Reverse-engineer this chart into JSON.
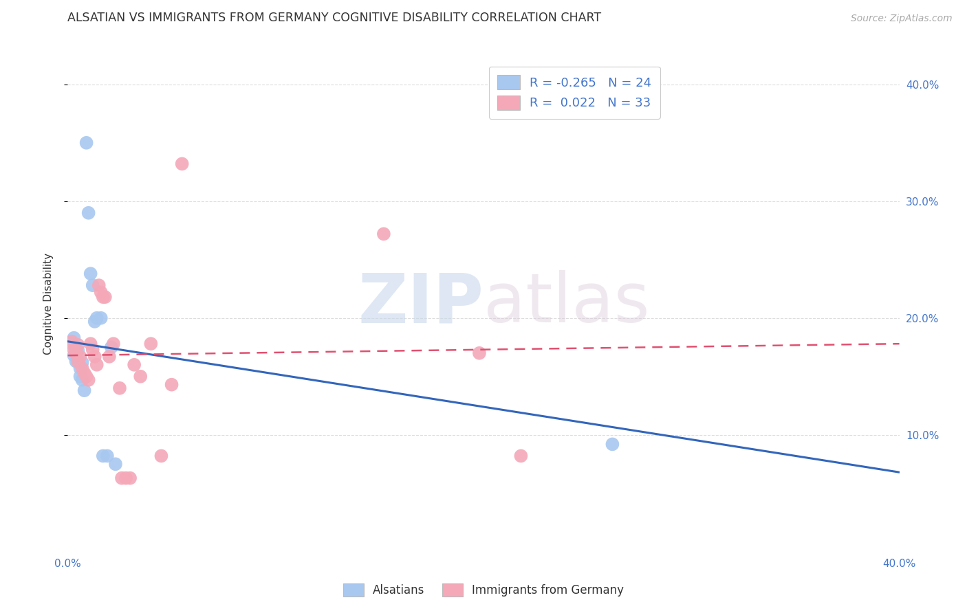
{
  "title": "ALSATIAN VS IMMIGRANTS FROM GERMANY COGNITIVE DISABILITY CORRELATION CHART",
  "source": "Source: ZipAtlas.com",
  "ylabel": "Cognitive Disability",
  "watermark_zip": "ZIP",
  "watermark_atlas": "atlas",
  "xlim": [
    0.0,
    0.4
  ],
  "ylim": [
    0.0,
    0.425
  ],
  "yticks": [
    0.1,
    0.2,
    0.3,
    0.4
  ],
  "ytick_labels": [
    "10.0%",
    "20.0%",
    "30.0%",
    "40.0%"
  ],
  "xticks": [
    0.0,
    0.1,
    0.2,
    0.3,
    0.4
  ],
  "xtick_labels": [
    "0.0%",
    "",
    "",
    "",
    "40.0%"
  ],
  "legend_r_blue": "-0.265",
  "legend_n_blue": "24",
  "legend_r_pink": "0.022",
  "legend_n_pink": "33",
  "legend_label_blue": "Alsatians",
  "legend_label_pink": "Immigrants from Germany",
  "blue_color": "#a8c8f0",
  "pink_color": "#f4a8b8",
  "line_blue": "#3366bb",
  "line_pink": "#e05070",
  "background_color": "#ffffff",
  "grid_color": "#dddddd",
  "title_color": "#333333",
  "axis_label_color": "#4477cc",
  "blue_scatter": [
    [
      0.002,
      0.178
    ],
    [
      0.003,
      0.183
    ],
    [
      0.003,
      0.168
    ],
    [
      0.004,
      0.173
    ],
    [
      0.004,
      0.163
    ],
    [
      0.005,
      0.172
    ],
    [
      0.005,
      0.162
    ],
    [
      0.006,
      0.157
    ],
    [
      0.006,
      0.15
    ],
    [
      0.007,
      0.162
    ],
    [
      0.007,
      0.147
    ],
    [
      0.008,
      0.138
    ],
    [
      0.009,
      0.35
    ],
    [
      0.01,
      0.29
    ],
    [
      0.011,
      0.238
    ],
    [
      0.012,
      0.228
    ],
    [
      0.013,
      0.197
    ],
    [
      0.014,
      0.2
    ],
    [
      0.016,
      0.2
    ],
    [
      0.017,
      0.082
    ],
    [
      0.019,
      0.082
    ],
    [
      0.021,
      0.175
    ],
    [
      0.023,
      0.075
    ],
    [
      0.262,
      0.092
    ]
  ],
  "pink_scatter": [
    [
      0.002,
      0.18
    ],
    [
      0.003,
      0.173
    ],
    [
      0.004,
      0.17
    ],
    [
      0.005,
      0.163
    ],
    [
      0.005,
      0.177
    ],
    [
      0.006,
      0.167
    ],
    [
      0.007,
      0.157
    ],
    [
      0.008,
      0.153
    ],
    [
      0.009,
      0.15
    ],
    [
      0.01,
      0.147
    ],
    [
      0.011,
      0.178
    ],
    [
      0.012,
      0.173
    ],
    [
      0.013,
      0.167
    ],
    [
      0.014,
      0.16
    ],
    [
      0.015,
      0.228
    ],
    [
      0.016,
      0.222
    ],
    [
      0.017,
      0.218
    ],
    [
      0.018,
      0.218
    ],
    [
      0.02,
      0.167
    ],
    [
      0.022,
      0.178
    ],
    [
      0.025,
      0.14
    ],
    [
      0.026,
      0.063
    ],
    [
      0.028,
      0.063
    ],
    [
      0.03,
      0.063
    ],
    [
      0.032,
      0.16
    ],
    [
      0.035,
      0.15
    ],
    [
      0.04,
      0.178
    ],
    [
      0.045,
      0.082
    ],
    [
      0.05,
      0.143
    ],
    [
      0.055,
      0.332
    ],
    [
      0.152,
      0.272
    ],
    [
      0.198,
      0.17
    ],
    [
      0.218,
      0.082
    ]
  ],
  "blue_line_x": [
    0.0,
    0.4
  ],
  "blue_line_y": [
    0.18,
    0.068
  ],
  "pink_line_x": [
    0.0,
    0.4
  ],
  "pink_line_y": [
    0.168,
    0.178
  ]
}
